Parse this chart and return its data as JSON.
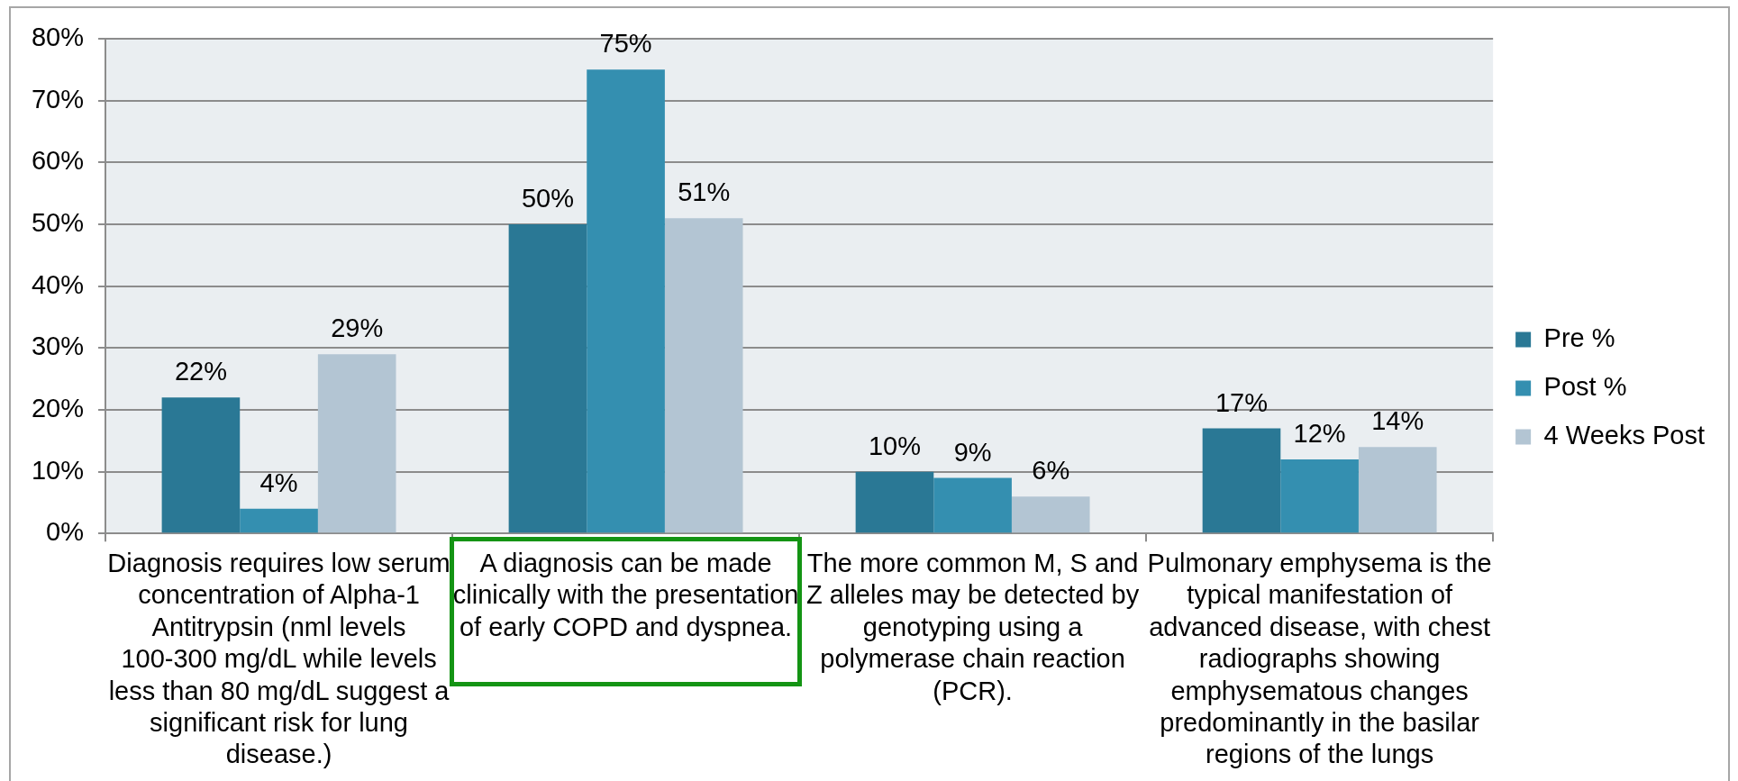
{
  "chart_data": {
    "type": "bar",
    "categories": [
      "Diagnosis requires low serum concentration of Alpha-1 Antitrypsin (nml levels 100-300 mg/dL while levels less than 80 mg/dL suggest a significant risk for lung disease.)",
      "A diagnosis can be made clinically with the presentation of early COPD and dyspnea.",
      "The more common M, S and Z alleles may be detected by genotyping using a polymerase chain reaction (PCR).",
      "Pulmonary emphysema is the typical manifestation of advanced disease, with chest radiographs showing emphysematous changes predominantly in the basilar regions of the lungs"
    ],
    "series": [
      {
        "name": "Pre %",
        "color": "#2a7895",
        "values": [
          22,
          50,
          10,
          17
        ],
        "value_labels": [
          "22%",
          "50%",
          "10%",
          "17%"
        ]
      },
      {
        "name": "Post %",
        "color": "#348fb0",
        "values": [
          4,
          75,
          9,
          12
        ],
        "value_labels": [
          "4%",
          "75%",
          "9%",
          "12%"
        ]
      },
      {
        "name": "4 Weeks Post",
        "color": "#b3c5d3",
        "values": [
          29,
          51,
          6,
          14
        ],
        "value_labels": [
          "29%",
          "51%",
          "6%",
          "14%"
        ]
      }
    ],
    "ylim": [
      0,
      80
    ],
    "yticks": [
      {
        "value": 0,
        "label": "0%"
      },
      {
        "value": 10,
        "label": "10%"
      },
      {
        "value": 20,
        "label": "20%"
      },
      {
        "value": 30,
        "label": "30%"
      },
      {
        "value": 40,
        "label": "40%"
      },
      {
        "value": 50,
        "label": "50%"
      },
      {
        "value": 60,
        "label": "60%"
      },
      {
        "value": 70,
        "label": "70%"
      },
      {
        "value": 80,
        "label": "80%"
      }
    ],
    "grid": "y",
    "legend": "right"
  }
}
